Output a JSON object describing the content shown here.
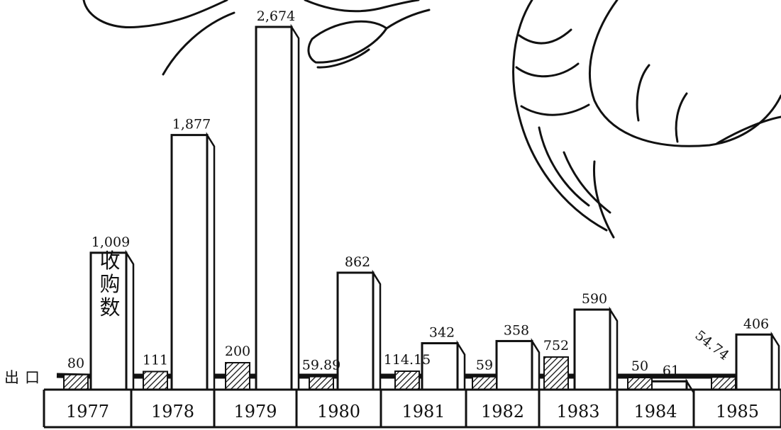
{
  "chart_data": {
    "type": "bar",
    "categories": [
      "1977",
      "1978",
      "1979",
      "1980",
      "1981",
      "1982",
      "1983",
      "1984",
      "1985"
    ],
    "series": [
      {
        "name": "收购数",
        "values": [
          1009,
          1877,
          2674,
          862,
          342,
          358,
          590,
          61,
          406
        ],
        "labels": [
          "1,009",
          "1,877",
          "2,674",
          "862",
          "342",
          "358",
          "590",
          "61",
          "406"
        ]
      },
      {
        "name": "出口",
        "values": [
          80,
          111,
          200,
          59.89,
          114.15,
          59,
          752,
          50,
          54.74
        ],
        "labels": [
          "80",
          "111",
          "200",
          "59.89",
          "114.15",
          "59",
          "752",
          "50",
          "54.74"
        ]
      }
    ],
    "purchase_label": "收购数",
    "export_label": "出口"
  },
  "illustration": {
    "icon": "shrimp-illustration-icon"
  }
}
